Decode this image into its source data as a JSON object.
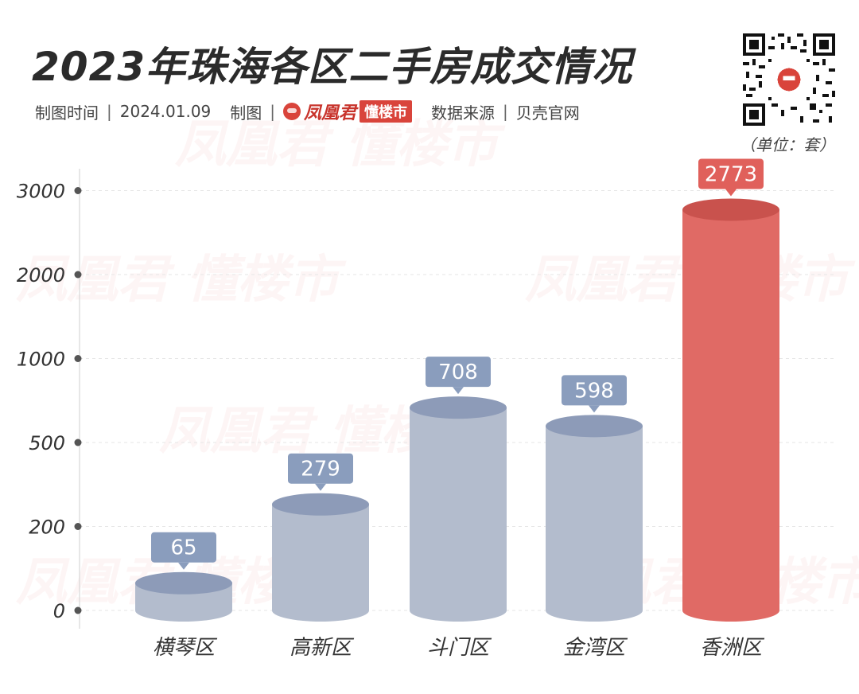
{
  "header": {
    "title": "2023年珠海各区二手房成交情况",
    "date_label": "制图时间",
    "date_value": "2024.01.09",
    "maker_label": "制图",
    "brand_name": "凤凰君",
    "brand_tag": "懂楼市",
    "source_label": "数据来源",
    "source_value": "贝壳官网",
    "unit": "（单位：套）"
  },
  "watermark_text": "凤凰君 懂楼市",
  "icons": {
    "qr": "qr-code-icon",
    "logo": "phoenix-logo-icon"
  },
  "colors": {
    "bar_default": "#b3bccd",
    "bar_default_top": "#8d9bb8",
    "bar_highlight": "#e06a65",
    "bar_highlight_top": "#c9524d",
    "label_default": "#8a9dbd",
    "label_highlight": "#e0605b",
    "axis": "#555555"
  },
  "chart_data": {
    "type": "bar",
    "title": "2023年珠海各区二手房成交情况",
    "unit": "（单位：套）",
    "categories": [
      "横琴区",
      "高新区",
      "斗门区",
      "金湾区",
      "香洲区"
    ],
    "values": [
      65,
      279,
      708,
      598,
      2773
    ],
    "highlight_index": 4,
    "y_ticks": [
      0,
      200,
      500,
      1000,
      2000,
      3000
    ],
    "y_tick_labels": [
      "0",
      "200",
      "500",
      "1000",
      "2000",
      "3000"
    ],
    "y_scale": "non-linear (ticks evenly spaced)",
    "grid": true,
    "style": "cylinder"
  }
}
